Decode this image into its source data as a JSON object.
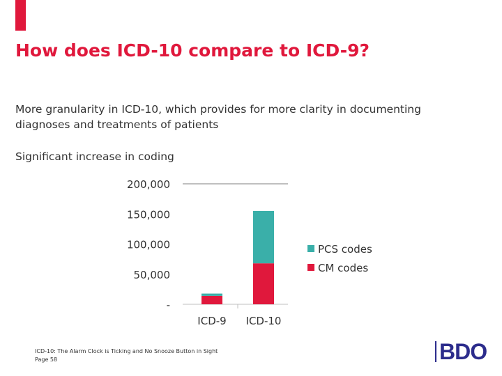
{
  "slide": {
    "title": "How does ICD-10 compare to ICD-9?",
    "paragraph1": "More granularity in ICD-10, which provides for more clarity in documenting diagnoses and treatments of patients",
    "paragraph2": "Significant increase in coding"
  },
  "colors": {
    "accent": "#e0183c",
    "title": "#e0183c",
    "cm_codes": "#e0183c",
    "pcs_codes": "#3aafa9",
    "logo": "#2c2c8c"
  },
  "footer": {
    "line1": "ICD-10: The Alarm Clock is Ticking and No Snooze Button in Sight",
    "line2": "Page 58"
  },
  "logo": {
    "text": "BDO"
  },
  "chart_data": {
    "type": "bar",
    "stacked": true,
    "categories": [
      "ICD-9",
      "ICD-10"
    ],
    "series": [
      {
        "name": "CM codes",
        "values": [
          14000,
          68000
        ],
        "color": "#e0183c"
      },
      {
        "name": "PCS codes",
        "values": [
          3800,
          87000
        ],
        "color": "#3aafa9"
      }
    ],
    "ylim": [
      0,
      200000
    ],
    "yticks": [
      0,
      50000,
      100000,
      150000,
      200000
    ],
    "ytick_labels": [
      "-",
      "50,000",
      "100,000",
      "150,000",
      "200,000"
    ],
    "legend_position": "right",
    "grid": "top line only"
  }
}
